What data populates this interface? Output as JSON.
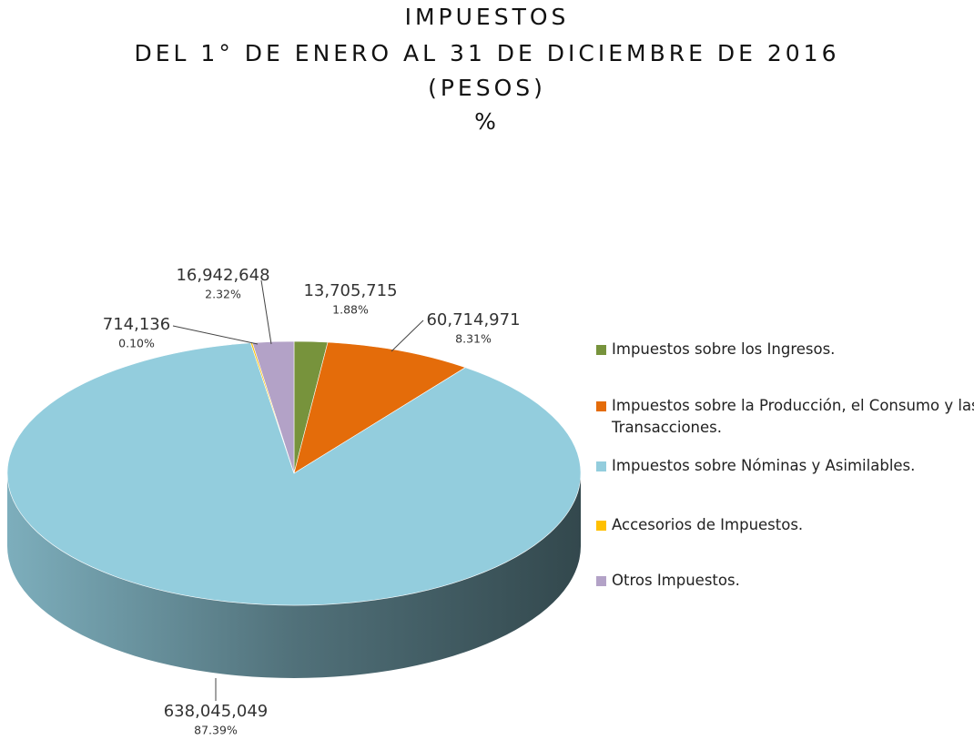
{
  "chart_data": {
    "type": "pie",
    "title": "IMPUESTOS",
    "subtitle": [
      "DEL 1° DE ENERO AL 31 DE DICIEMBRE DE 2016",
      "(PESOS)",
      "%"
    ],
    "categories": [
      "Impuestos sobre los Ingresos.",
      "Impuestos sobre la Producción, el Consumo y las Transacciones.",
      "Impuestos sobre Nóminas y Asimilables.",
      "Accesorios de Impuestos.",
      "Otros Impuestos."
    ],
    "values": [
      13705715,
      60714971,
      638045049,
      714136,
      16942648
    ],
    "value_labels": [
      "13,705,715",
      "60,714,971",
      "638,045,049",
      "714,136",
      "16,942,648"
    ],
    "percentages": [
      1.88,
      8.31,
      87.39,
      0.1,
      2.32
    ],
    "percent_labels": [
      "1.88%",
      "8.31%",
      "87.39%",
      "0.10%",
      "2.32%"
    ],
    "colors": [
      "#77933c",
      "#e46c0a",
      "#93cddd",
      "#ffc000",
      "#b3a2c7"
    ],
    "legend": "right"
  }
}
